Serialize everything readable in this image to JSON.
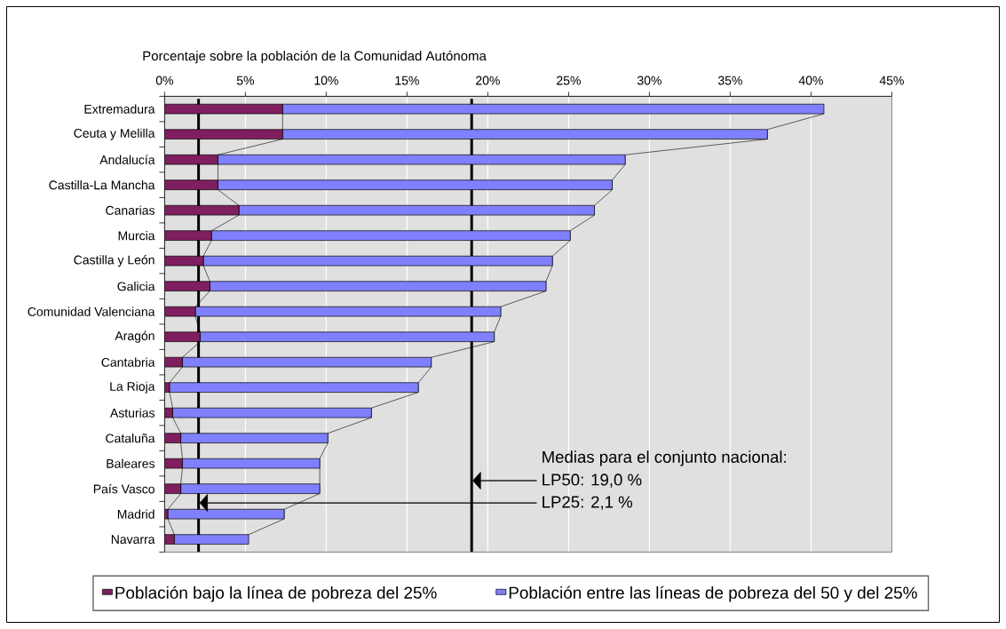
{
  "chart_data": {
    "type": "bar",
    "orientation": "horizontal",
    "stacked": true,
    "xlabel": "Porcentaje  sobre la población de la Comunidad Autónoma",
    "categories": [
      "Extremadura",
      "Ceuta y Melilla",
      "Andalucía",
      "Castilla-La Mancha",
      "Canarias",
      "Murcia",
      "Castilla y León",
      "Galicia",
      "Comunidad Valenciana",
      "Aragón",
      "Cantabria",
      "La Rioja",
      "Asturias",
      "Cataluña",
      "Baleares",
      "País Vasco",
      "Madrid",
      "Navarra"
    ],
    "series": [
      {
        "name": "Población bajo la línea de pobreza del 25%",
        "color": "#7f1f5f",
        "values": [
          7.3,
          7.3,
          3.3,
          3.3,
          4.6,
          2.9,
          2.4,
          2.8,
          1.9,
          2.2,
          1.1,
          0.3,
          0.5,
          1.0,
          1.1,
          1.0,
          0.2,
          0.6
        ]
      },
      {
        "name": "Población entre las líneas de pobreza del 50 y del 25%",
        "color": "#8080ff",
        "values": [
          33.5,
          30.0,
          25.2,
          24.4,
          22.0,
          22.2,
          21.6,
          20.8,
          18.9,
          18.2,
          15.4,
          15.4,
          12.3,
          9.1,
          8.5,
          8.6,
          7.2,
          4.6
        ]
      }
    ],
    "xlim": [
      0,
      45
    ],
    "xticks": [
      {
        "value": 0,
        "label": "0%"
      },
      {
        "value": 5,
        "label": "5%"
      },
      {
        "value": 10,
        "label": "10%"
      },
      {
        "value": 15,
        "label": "15%"
      },
      {
        "value": 20,
        "label": "20%"
      },
      {
        "value": 25,
        "label": "25%"
      },
      {
        "value": 30,
        "label": "30%"
      },
      {
        "value": 35,
        "label": "35%"
      },
      {
        "value": 40,
        "label": "40%"
      },
      {
        "value": 45,
        "label": "45%"
      }
    ],
    "grid": "x",
    "legend": "bottom",
    "ref_lines": [
      {
        "axis": "x",
        "value": 19.0,
        "color": "#000000"
      },
      {
        "axis": "x",
        "value": 2.1,
        "color": "#000000"
      }
    ],
    "annotations": [
      "Medias para el  conjunto nacional:",
      "LP50: 19,0 %",
      "LP25:   2,1 %"
    ]
  }
}
